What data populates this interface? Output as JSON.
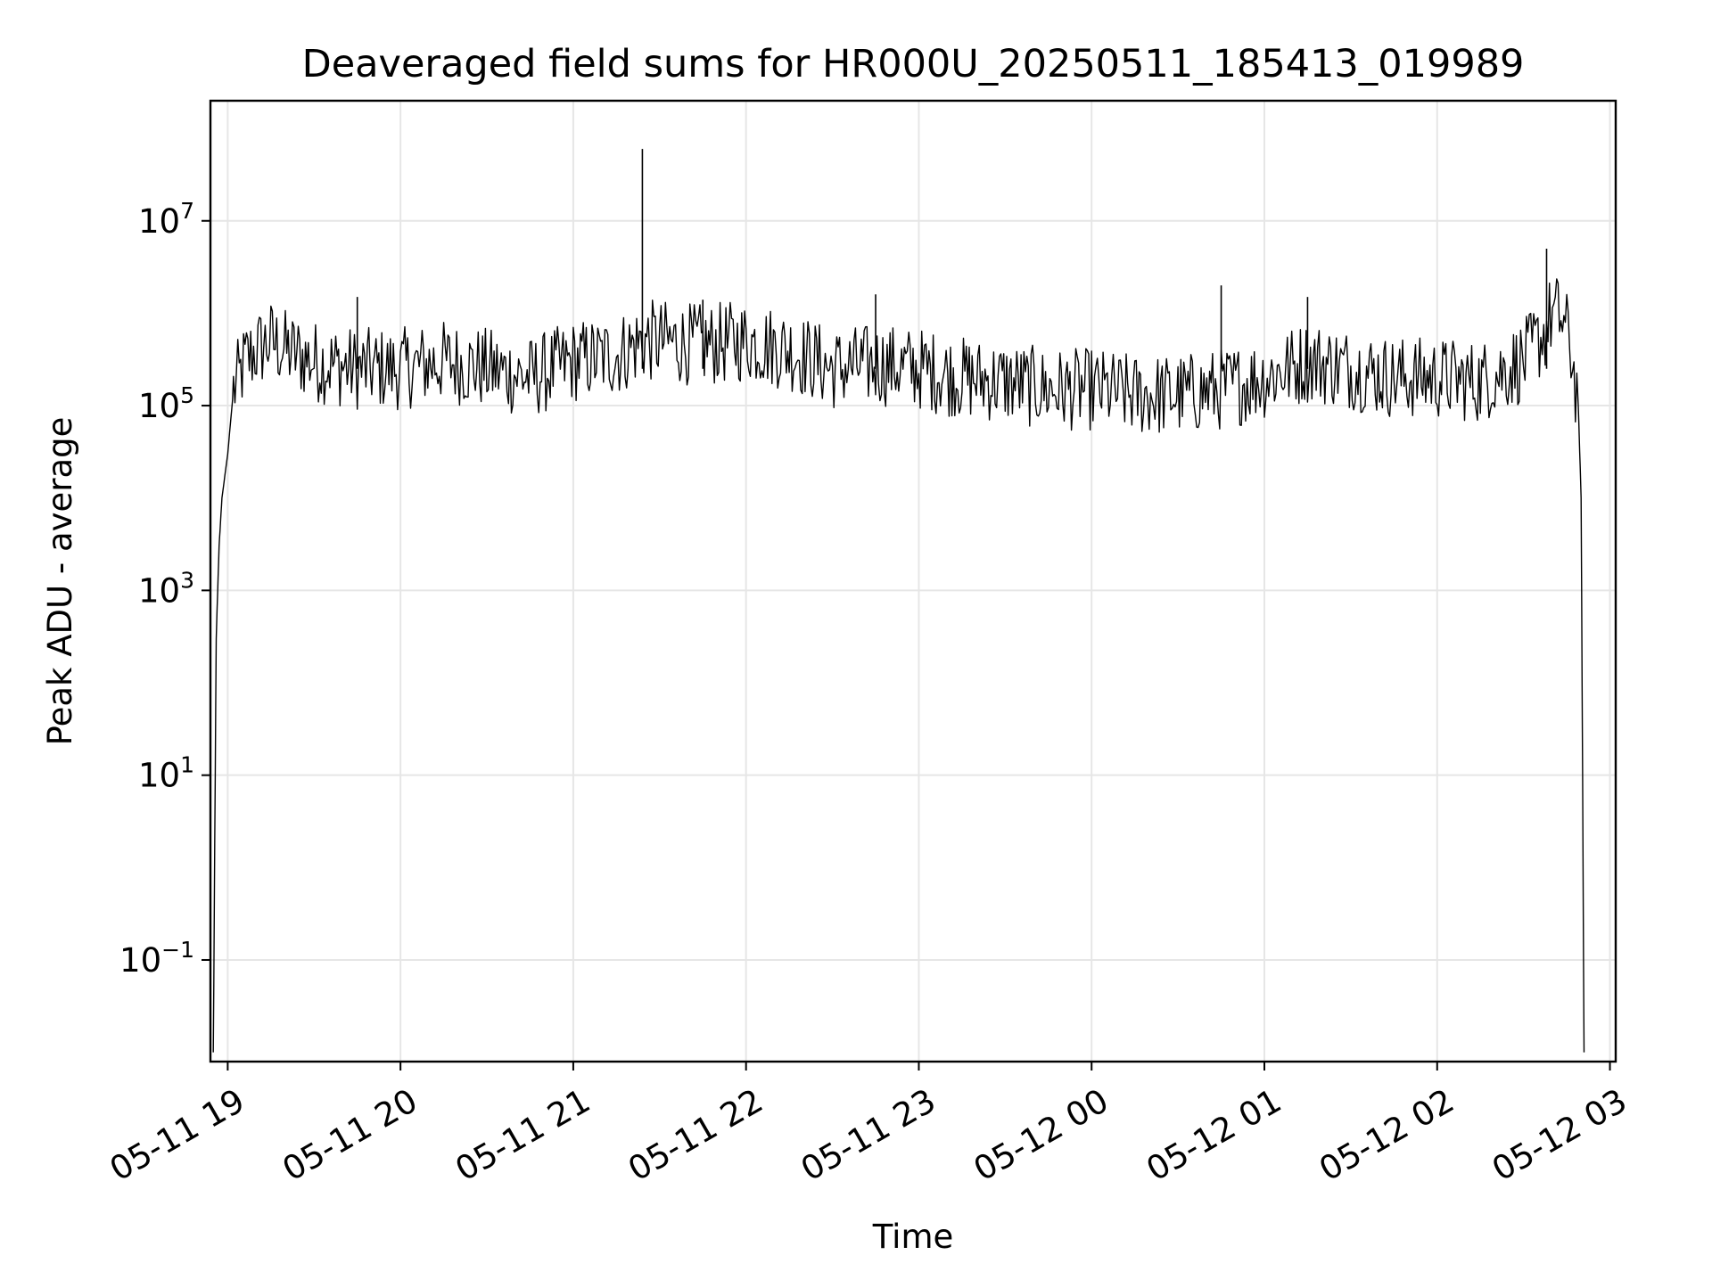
{
  "chart_data": {
    "type": "line",
    "title": "Deaveraged field sums for HR000U_20250511_185413_019989",
    "xlabel": "Time",
    "ylabel": "Peak ADU - average",
    "yscale": "log",
    "grid": true,
    "legend": "none",
    "line_color": "#000000",
    "grid_color": "#e6e6e6",
    "xlim": [
      "2025-05-11 18:54",
      "2025-05-12 03:02"
    ],
    "ylim_log10": [
      -2.1,
      8.3
    ],
    "x_ticks": [
      {
        "value": "2025-05-11 19:00",
        "label": "05-11 19"
      },
      {
        "value": "2025-05-11 20:00",
        "label": "05-11 20"
      },
      {
        "value": "2025-05-11 21:00",
        "label": "05-11 21"
      },
      {
        "value": "2025-05-11 22:00",
        "label": "05-11 22"
      },
      {
        "value": "2025-05-11 23:00",
        "label": "05-11 23"
      },
      {
        "value": "2025-05-12 00:00",
        "label": "05-12 00"
      },
      {
        "value": "2025-05-12 01:00",
        "label": "05-12 01"
      },
      {
        "value": "2025-05-12 02:00",
        "label": "05-12 02"
      },
      {
        "value": "2025-05-12 03:00",
        "label": "05-12 03"
      }
    ],
    "y_ticks": [
      {
        "exp": 7,
        "base": "10",
        "sup": "7"
      },
      {
        "exp": 5,
        "base": "10",
        "sup": "5"
      },
      {
        "exp": 3,
        "base": "10",
        "sup": "3"
      },
      {
        "exp": 1,
        "base": "10",
        "sup": "1"
      },
      {
        "exp": -1,
        "base": "10",
        "sup": "−1"
      }
    ],
    "series": [
      {
        "x": [
          "2025-05-11 18:55",
          "2025-05-11 18:56",
          "2025-05-11 18:57",
          "2025-05-11 18:58",
          "2025-05-11 19:00",
          "2025-05-11 19:02",
          "2025-05-11 19:04",
          "2025-05-11 19:06",
          "2025-05-11 19:10",
          "2025-05-11 19:15",
          "2025-05-11 19:20",
          "2025-05-11 19:30",
          "2025-05-11 19:45",
          "2025-05-11 20:00",
          "2025-05-11 20:15",
          "2025-05-11 20:30",
          "2025-05-11 20:45",
          "2025-05-11 21:00",
          "2025-05-11 21:15",
          "2025-05-11 21:24",
          "2025-05-11 21:30",
          "2025-05-11 21:45",
          "2025-05-11 22:00",
          "2025-05-11 22:15",
          "2025-05-11 22:30",
          "2025-05-11 22:45",
          "2025-05-11 23:00",
          "2025-05-11 23:15",
          "2025-05-11 23:30",
          "2025-05-11 23:45",
          "2025-05-12 00:00",
          "2025-05-12 00:15",
          "2025-05-12 00:30",
          "2025-05-12 00:45",
          "2025-05-12 01:00",
          "2025-05-12 01:15",
          "2025-05-12 01:30",
          "2025-05-12 01:45",
          "2025-05-12 02:00",
          "2025-05-12 02:15",
          "2025-05-12 02:30",
          "2025-05-12 02:37",
          "2025-05-12 02:40",
          "2025-05-12 02:43",
          "2025-05-12 02:46",
          "2025-05-12 02:49",
          "2025-05-12 02:50",
          "2025-05-12 02:51"
        ],
        "y": [
          0.01,
          300,
          3000,
          10000,
          30000,
          150000,
          200000,
          300000,
          400000,
          500000,
          400000,
          300000,
          250000,
          250000,
          300000,
          250000,
          200000,
          300000,
          350000,
          500000,
          500000,
          450000,
          500000,
          400000,
          250000,
          280000,
          250000,
          200000,
          180000,
          150000,
          150000,
          130000,
          130000,
          150000,
          200000,
          300000,
          250000,
          200000,
          200000,
          180000,
          300000,
          600000,
          1000000,
          900000,
          500000,
          100000,
          10000,
          0.01
        ]
      }
    ],
    "spikes": [
      {
        "x": "2025-05-11 21:24",
        "y": 60000000
      },
      {
        "x": "2025-05-12 02:38",
        "y": 5000000
      },
      {
        "x": "2025-05-11 19:45",
        "y": 1500000
      },
      {
        "x": "2025-05-11 21:45",
        "y": 1400000
      },
      {
        "x": "2025-05-11 22:45",
        "y": 1600000
      },
      {
        "x": "2025-05-12 00:45",
        "y": 2000000
      },
      {
        "x": "2025-05-12 01:15",
        "y": 1500000
      }
    ]
  }
}
